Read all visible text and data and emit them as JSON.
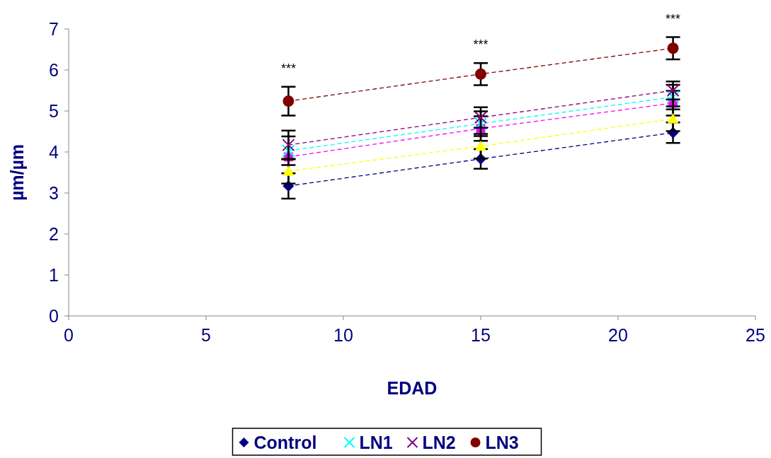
{
  "chart_data": {
    "type": "line",
    "xlabel": "EDAD",
    "ylabel": "µm/µm",
    "x": [
      8,
      15,
      22
    ],
    "xlim": [
      0,
      25
    ],
    "xticks": [
      0,
      5,
      10,
      15,
      20,
      25
    ],
    "ylim": [
      0,
      7
    ],
    "yticks": [
      0,
      1,
      2,
      3,
      4,
      5,
      6,
      7
    ],
    "grid": false,
    "legend": "bottom",
    "line_style": "dashed",
    "series": [
      {
        "name": "Control",
        "color": "#000080",
        "marker": "diamond",
        "values": [
          3.17,
          3.83,
          4.47
        ],
        "errors": [
          0.31,
          0.24,
          0.25
        ]
      },
      {
        "color": "#ff00ff",
        "marker": "square",
        "values": [
          3.88,
          4.57,
          5.19
        ],
        "errors": [
          null,
          0.3,
          0.3
        ]
      },
      {
        "color": "#ffff00",
        "marker": "triangle",
        "values": [
          3.53,
          4.14,
          4.81
        ],
        "errors": [
          0.3,
          0.3,
          0.3
        ]
      },
      {
        "name": "LN1",
        "color": "#00ffff",
        "marker": "cross",
        "values": [
          4.03,
          4.69,
          5.34
        ],
        "errors": [
          0.35,
          0.3,
          0.3
        ]
      },
      {
        "name": "LN2",
        "color": "#800080",
        "marker": "cross",
        "values": [
          4.17,
          4.84,
          5.5
        ],
        "errors": [
          0.35,
          0.25,
          0.22
        ]
      },
      {
        "name": "LN3",
        "color": "#800000",
        "marker": "circle",
        "values": [
          5.24,
          5.9,
          6.53
        ],
        "errors": [
          0.35,
          0.27,
          0.27
        ]
      }
    ],
    "annotations": [
      "***",
      "***",
      "***"
    ]
  }
}
